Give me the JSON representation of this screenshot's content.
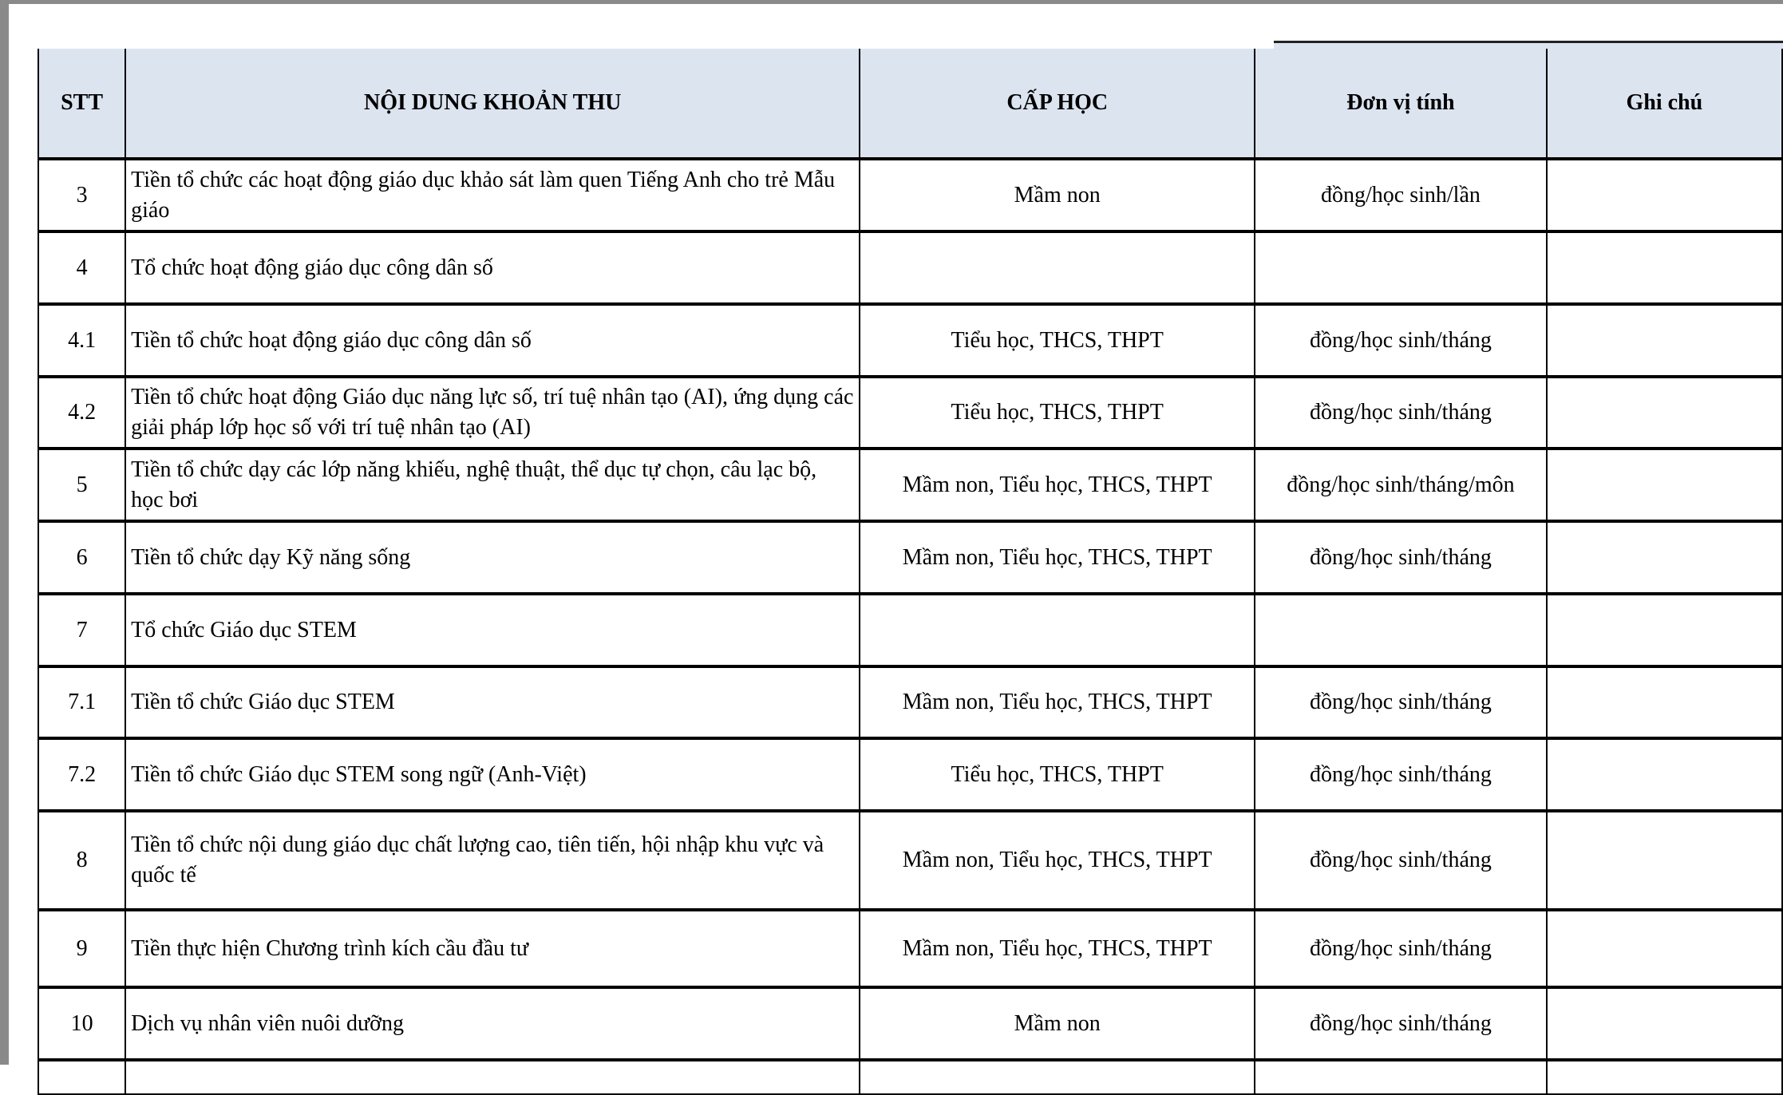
{
  "table": {
    "headers": [
      "STT",
      "NỘI DUNG KHOẢN THU",
      "CẤP HỌC",
      "Đơn vị tính",
      "Ghi chú"
    ],
    "rows": [
      {
        "stt": "3",
        "content": "Tiền tổ chức các hoạt động giáo dục khảo sát làm quen Tiếng Anh cho trẻ Mẫu giáo",
        "level": "Mầm non",
        "unit": "đồng/học sinh/lần",
        "note": ""
      },
      {
        "stt": "4",
        "content": "Tổ chức hoạt động giáo dục công dân số",
        "level": "",
        "unit": "",
        "note": ""
      },
      {
        "stt": "4.1",
        "content": "Tiền tổ chức hoạt động giáo dục công dân số",
        "level": "Tiểu học, THCS, THPT",
        "unit": "đồng/học sinh/tháng",
        "note": ""
      },
      {
        "stt": "4.2",
        "content": "Tiền tổ chức hoạt động Giáo dục năng lực số, trí tuệ nhân tạo (AI), ứng dụng các giải pháp lớp học số với trí tuệ nhân tạo (AI)",
        "level": "Tiểu học, THCS, THPT",
        "unit": "đồng/học sinh/tháng",
        "note": ""
      },
      {
        "stt": "5",
        "content": "Tiền tổ chức dạy các lớp năng khiếu, nghệ thuật, thể dục tự chọn, câu lạc bộ, học bơi",
        "level": "Mầm non, Tiểu học, THCS, THPT",
        "unit": "đồng/học sinh/tháng/môn",
        "note": ""
      },
      {
        "stt": "6",
        "content": "Tiền tổ chức dạy Kỹ năng sống",
        "level": "Mầm non, Tiểu học, THCS, THPT",
        "unit": "đồng/học sinh/tháng",
        "note": ""
      },
      {
        "stt": "7",
        "content": "Tổ chức Giáo dục STEM",
        "level": "",
        "unit": "",
        "note": ""
      },
      {
        "stt": "7.1",
        "content": "Tiền tổ chức Giáo dục STEM",
        "level": "Mầm non, Tiểu học, THCS, THPT",
        "unit": "đồng/học sinh/tháng",
        "note": ""
      },
      {
        "stt": "7.2",
        "content": "Tiền tổ chức Giáo dục STEM song ngữ (Anh-Việt)",
        "level": "Tiểu học, THCS, THPT",
        "unit": "đồng/học sinh/tháng",
        "note": ""
      },
      {
        "stt": "8",
        "content": "Tiền tổ chức nội dung giáo dục chất lượng cao, tiên tiến, hội nhập khu vực và quốc tế",
        "level": "Mầm non, Tiểu học, THCS, THPT",
        "unit": "đồng/học sinh/tháng",
        "note": ""
      },
      {
        "stt": "9",
        "content": "Tiền thực hiện Chương trình kích cầu đầu tư",
        "level": "Mầm non, Tiểu học, THCS, THPT",
        "unit": "đồng/học sinh/tháng",
        "note": ""
      },
      {
        "stt": "10",
        "content": "Dịch vụ nhân viên nuôi dưỡng",
        "level": "Mầm non",
        "unit": "đồng/học sinh/tháng",
        "note": ""
      }
    ]
  },
  "colors": {
    "header_bg": "#dce4f0",
    "border": "#000000"
  }
}
